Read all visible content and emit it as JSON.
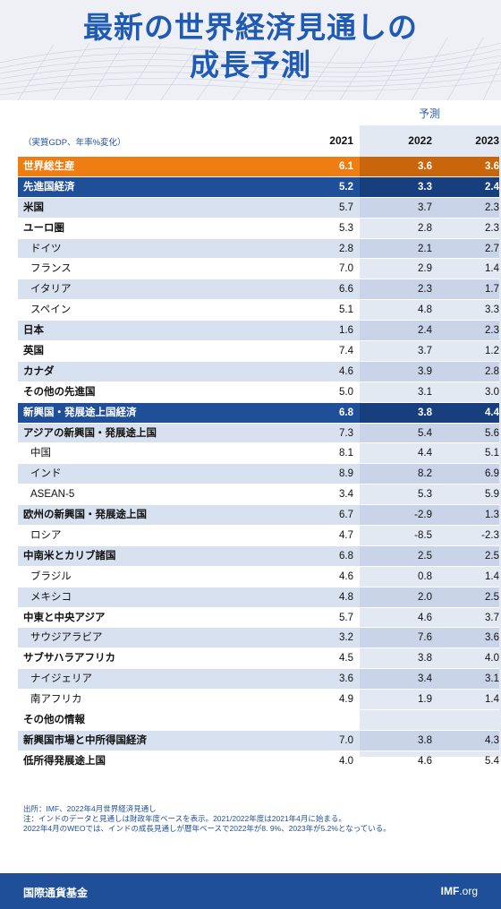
{
  "title": {
    "line1": "最新の世界経済見通しの",
    "line2": "成長予測"
  },
  "projection_label": "予測",
  "unit_note": "（実質GDP、年率%変化）",
  "footnote": {
    "line1": "出所：IMF、2022年4月世界経済見通し",
    "line2": "注：インドのデータと見通しは財政年度ベースを表示。2021/2022年度は2021年4月に始まる。",
    "line3": "2022年4月のWEOでは、インドの成長見通しが暦年ベースで2022年が8. 9%、2023年が5.2%となっている。"
  },
  "footer": {
    "org": "国際通貨基金",
    "site_bold": "IMF",
    "site_rest": ".org"
  },
  "colors": {
    "title": "#1f5bb4",
    "orange": "#ee7d12",
    "navy": "#1f4f99",
    "light_row": "#d8e1ef"
  },
  "chart_data": {
    "type": "table",
    "columns": [
      "2021",
      "2022",
      "2023"
    ],
    "rows": [
      {
        "label": "世界総生産",
        "values": [
          "6.1",
          "3.6",
          "3.6"
        ],
        "style": "orange"
      },
      {
        "label": "先進国経済",
        "values": [
          "5.2",
          "3.3",
          "2.4"
        ],
        "style": "blue"
      },
      {
        "label": "米国",
        "values": [
          "5.7",
          "3.7",
          "2.3"
        ],
        "style": "light",
        "bold": true
      },
      {
        "label": "ユーロ圏",
        "values": [
          "5.3",
          "2.8",
          "2.3"
        ],
        "style": "white",
        "bold": true
      },
      {
        "label": "ドイツ",
        "values": [
          "2.8",
          "2.1",
          "2.7"
        ],
        "style": "light",
        "indent": true
      },
      {
        "label": "フランス",
        "values": [
          "7.0",
          "2.9",
          "1.4"
        ],
        "style": "white",
        "indent": true
      },
      {
        "label": "イタリア",
        "values": [
          "6.6",
          "2.3",
          "1.7"
        ],
        "style": "light",
        "indent": true
      },
      {
        "label": "スペイン",
        "values": [
          "5.1",
          "4.8",
          "3.3"
        ],
        "style": "white",
        "indent": true
      },
      {
        "label": "日本",
        "values": [
          "1.6",
          "2.4",
          "2.3"
        ],
        "style": "light",
        "bold": true
      },
      {
        "label": "英国",
        "values": [
          "7.4",
          "3.7",
          "1.2"
        ],
        "style": "white",
        "bold": true
      },
      {
        "label": "カナダ",
        "values": [
          "4.6",
          "3.9",
          "2.8"
        ],
        "style": "light",
        "bold": true
      },
      {
        "label": "その他の先進国",
        "values": [
          "5.0",
          "3.1",
          "3.0"
        ],
        "style": "white",
        "bold": true
      },
      {
        "label": "新興国・発展途上国経済",
        "values": [
          "6.8",
          "3.8",
          "4.4"
        ],
        "style": "blue"
      },
      {
        "label": "アジアの新興国・発展途上国",
        "values": [
          "7.3",
          "5.4",
          "5.6"
        ],
        "style": "light",
        "bold": true
      },
      {
        "label": "中国",
        "values": [
          "8.1",
          "4.4",
          "5.1"
        ],
        "style": "white",
        "indent": true
      },
      {
        "label": "インド",
        "values": [
          "8.9",
          "8.2",
          "6.9"
        ],
        "style": "light",
        "indent": true
      },
      {
        "label": "ASEAN-5",
        "values": [
          "3.4",
          "5.3",
          "5.9"
        ],
        "style": "white",
        "indent": true
      },
      {
        "label": "欧州の新興国・発展途上国",
        "values": [
          "6.7",
          "-2.9",
          "1.3"
        ],
        "style": "light",
        "bold": true
      },
      {
        "label": "ロシア",
        "values": [
          "4.7",
          "-8.5",
          "-2.3"
        ],
        "style": "white",
        "indent": true
      },
      {
        "label": "中南米とカリブ諸国",
        "values": [
          "6.8",
          "2.5",
          "2.5"
        ],
        "style": "light",
        "bold": true
      },
      {
        "label": "ブラジル",
        "values": [
          "4.6",
          "0.8",
          "1.4"
        ],
        "style": "white",
        "indent": true
      },
      {
        "label": "メキシコ",
        "values": [
          "4.8",
          "2.0",
          "2.5"
        ],
        "style": "light",
        "indent": true
      },
      {
        "label": "中東と中央アジア",
        "values": [
          "5.7",
          "4.6",
          "3.7"
        ],
        "style": "white",
        "bold": true
      },
      {
        "label": "サウジアラビア",
        "values": [
          "3.2",
          "7.6",
          "3.6"
        ],
        "style": "light",
        "indent": true
      },
      {
        "label": "サブサハラアフリカ",
        "values": [
          "4.5",
          "3.8",
          "4.0"
        ],
        "style": "white",
        "bold": true
      },
      {
        "label": "ナイジェリア",
        "values": [
          "3.6",
          "3.4",
          "3.1"
        ],
        "style": "light",
        "indent": true
      },
      {
        "label": "南アフリカ",
        "values": [
          "4.9",
          "1.9",
          "1.4"
        ],
        "style": "white",
        "indent": true
      },
      {
        "label": "その他の情報",
        "values": [
          "",
          "",
          ""
        ],
        "style": "white",
        "bold": true
      },
      {
        "label": "新興国市場と中所得国経済",
        "values": [
          "7.0",
          "3.8",
          "4.3"
        ],
        "style": "light",
        "bold": true
      },
      {
        "label": "低所得発展途上国",
        "values": [
          "4.0",
          "4.6",
          "5.4"
        ],
        "style": "white",
        "bold": true
      }
    ]
  }
}
